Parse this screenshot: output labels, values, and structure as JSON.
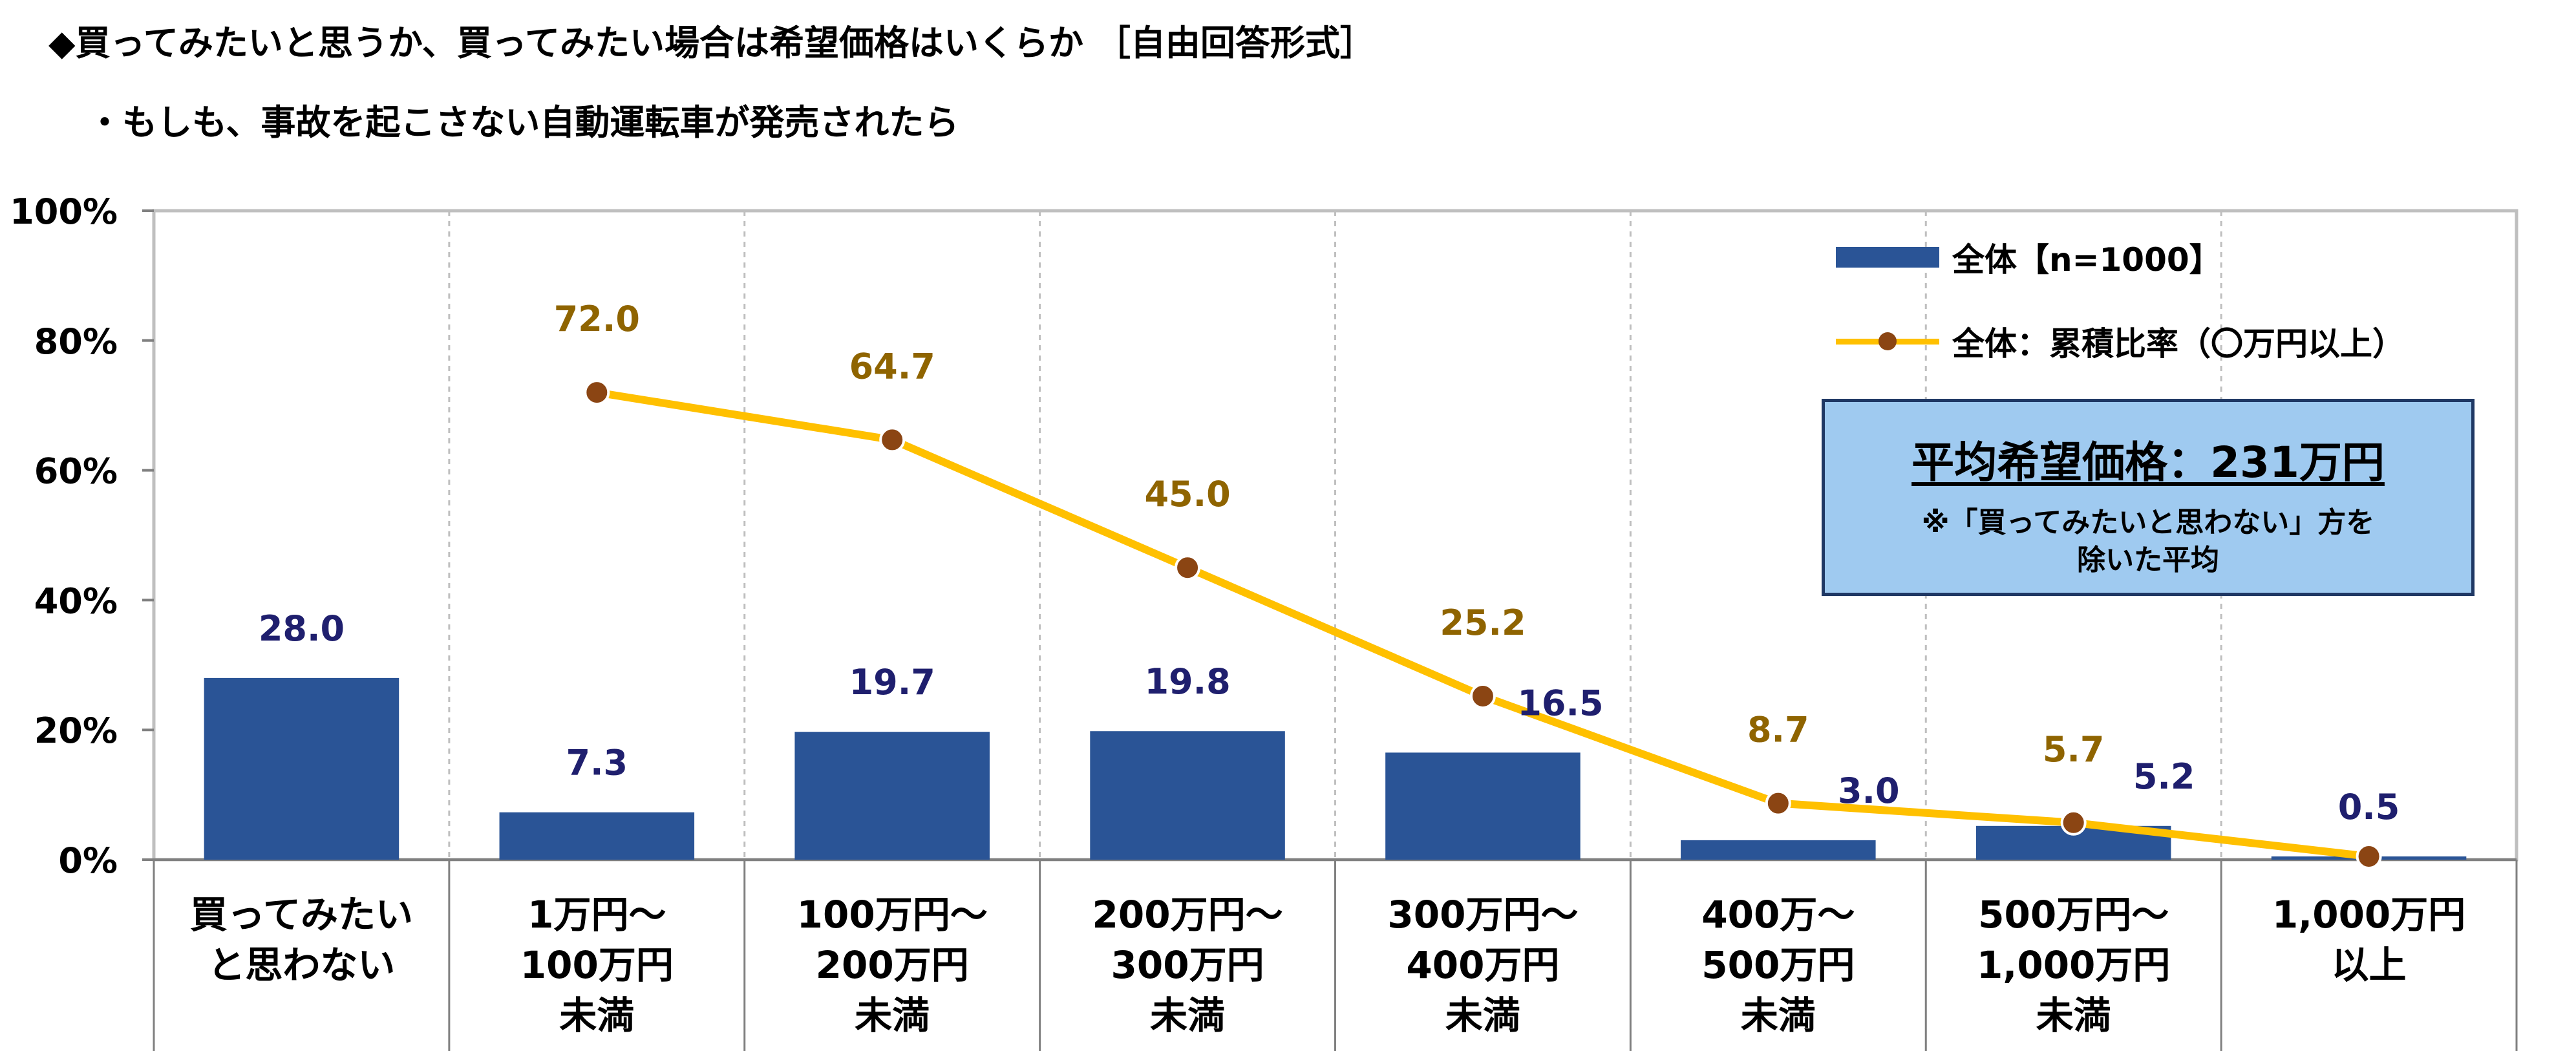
{
  "heading": {
    "line1": "◆買ってみたいと思うか、買ってみたい場合は希望価格はいくらか ［自由回答形式］",
    "line2": "・もしも、事故を起こさない自動運転車が発売されたら"
  },
  "average_box": {
    "title": "平均希望価格：231万円",
    "note_line1": "※「買ってみたいと思わない」方を",
    "note_line2": "除いた平均"
  },
  "colors": {
    "bar": "#2a5496",
    "line": "#ffc000",
    "marker": "#8b4513",
    "bar_label": "#1f1f6e",
    "line_label": "#8f6400"
  },
  "chart_data": {
    "type": "bar",
    "categories": [
      [
        "買ってみたい",
        "と思わない"
      ],
      [
        "1万円～",
        "100万円",
        "未満"
      ],
      [
        "100万円～",
        "200万円",
        "未満"
      ],
      [
        "200万円～",
        "300万円",
        "未満"
      ],
      [
        "300万円～",
        "400万円",
        "未満"
      ],
      [
        "400万～",
        "500万円",
        "未満"
      ],
      [
        "500万円～",
        "1,000万円",
        "未満"
      ],
      [
        "1,000万円",
        "以上"
      ]
    ],
    "series": [
      {
        "name": "全体【n=1000】",
        "type": "bar",
        "values": [
          28.0,
          7.3,
          19.7,
          19.8,
          16.5,
          3.0,
          5.2,
          0.5
        ],
        "labels": [
          "28.0",
          "7.3",
          "19.7",
          "19.8",
          "16.5",
          "3.0",
          "5.2",
          "0.5"
        ]
      },
      {
        "name": "全体：累積比率（〇万円以上）",
        "type": "line",
        "values": [
          null,
          72.0,
          64.7,
          45.0,
          25.2,
          8.7,
          5.7,
          0.5
        ],
        "labels": [
          "",
          "72.0",
          "64.7",
          "45.0",
          "25.2",
          "8.7",
          "5.7",
          ""
        ]
      }
    ],
    "yticks": [
      "0%",
      "20%",
      "40%",
      "60%",
      "80%",
      "100%"
    ],
    "ylim": [
      0,
      100
    ],
    "grid": "vertical dotted separators",
    "legend": "top-right"
  }
}
